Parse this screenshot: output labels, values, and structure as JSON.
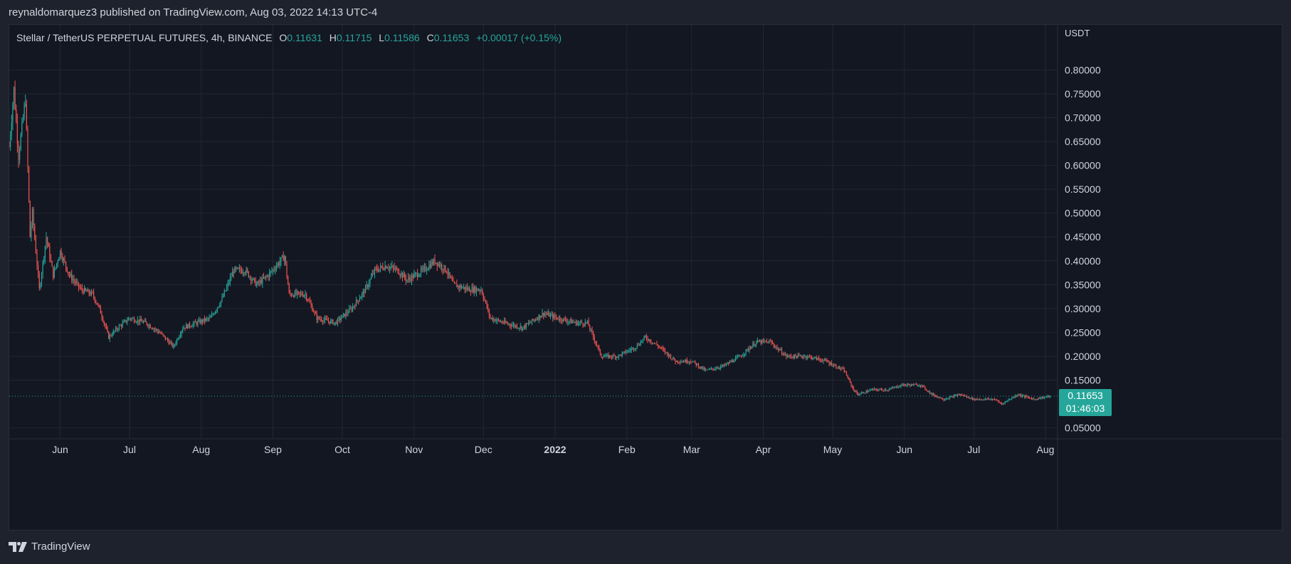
{
  "header": {
    "publisher_line": "reynaldomarquez3 published on TradingView.com, Aug 03, 2022 14:13 UTC-4"
  },
  "legend": {
    "symbol": "Stellar / TetherUS PERPETUAL FUTURES, 4h, BINANCE",
    "o_label": "O",
    "o_value": "0.11631",
    "h_label": "H",
    "h_value": "0.11715",
    "l_label": "L",
    "l_value": "0.11586",
    "c_label": "C",
    "c_value": "0.11653",
    "change": "+0.00017 (+0.15%)"
  },
  "price_scale": {
    "currency": "USDT",
    "last_price": "0.11653",
    "countdown": "01:46:03"
  },
  "footer": {
    "brand": "TradingView"
  },
  "colors": {
    "up": "#26a69a",
    "down": "#ef5350",
    "background": "#131722",
    "grid": "#232732"
  },
  "chart_data": {
    "type": "candlestick",
    "title": "Stellar / TetherUS PERPETUAL FUTURES, 4h, BINANCE",
    "ylabel": "USDT",
    "y_ticks": [
      "0.05000",
      "0.15000",
      "0.20000",
      "0.25000",
      "0.30000",
      "0.35000",
      "0.40000",
      "0.45000",
      "0.50000",
      "0.55000",
      "0.60000",
      "0.65000",
      "0.70000",
      "0.75000",
      "0.80000"
    ],
    "ylim": [
      0.03,
      0.82
    ],
    "x_ticks": [
      "Jun",
      "Jul",
      "Aug",
      "Sep",
      "Oct",
      "Nov",
      "Dec",
      "2022",
      "Feb",
      "Mar",
      "Apr",
      "May",
      "Jun",
      "Jul",
      "Aug"
    ],
    "x_tick_dates": [
      "2021-06-01",
      "2021-07-01",
      "2021-08-01",
      "2021-09-01",
      "2021-10-01",
      "2021-11-01",
      "2021-12-01",
      "2022-01-01",
      "2022-02-01",
      "2022-03-01",
      "2022-04-01",
      "2022-05-01",
      "2022-06-01",
      "2022-07-01",
      "2022-08-01"
    ],
    "x_range": [
      "2021-05-10",
      "2022-08-05"
    ],
    "last_close": 0.11653,
    "grid": true,
    "approx_path": [
      [
        "2021-05-10",
        0.64
      ],
      [
        "2021-05-12",
        0.76
      ],
      [
        "2021-05-14",
        0.62
      ],
      [
        "2021-05-17",
        0.74
      ],
      [
        "2021-05-19",
        0.45
      ],
      [
        "2021-05-20",
        0.5
      ],
      [
        "2021-05-23",
        0.34
      ],
      [
        "2021-05-26",
        0.45
      ],
      [
        "2021-05-29",
        0.37
      ],
      [
        "2021-06-01",
        0.42
      ],
      [
        "2021-06-05",
        0.37
      ],
      [
        "2021-06-10",
        0.34
      ],
      [
        "2021-06-15",
        0.33
      ],
      [
        "2021-06-18",
        0.3
      ],
      [
        "2021-06-22",
        0.24
      ],
      [
        "2021-06-26",
        0.26
      ],
      [
        "2021-07-01",
        0.28
      ],
      [
        "2021-07-08",
        0.27
      ],
      [
        "2021-07-14",
        0.25
      ],
      [
        "2021-07-20",
        0.22
      ],
      [
        "2021-07-24",
        0.26
      ],
      [
        "2021-07-30",
        0.27
      ],
      [
        "2021-08-05",
        0.28
      ],
      [
        "2021-08-10",
        0.32
      ],
      [
        "2021-08-15",
        0.38
      ],
      [
        "2021-08-20",
        0.38
      ],
      [
        "2021-08-25",
        0.35
      ],
      [
        "2021-08-30",
        0.37
      ],
      [
        "2021-09-06",
        0.41
      ],
      [
        "2021-09-08",
        0.33
      ],
      [
        "2021-09-15",
        0.33
      ],
      [
        "2021-09-20",
        0.28
      ],
      [
        "2021-09-28",
        0.27
      ],
      [
        "2021-10-05",
        0.3
      ],
      [
        "2021-10-11",
        0.34
      ],
      [
        "2021-10-15",
        0.38
      ],
      [
        "2021-10-20",
        0.39
      ],
      [
        "2021-10-25",
        0.38
      ],
      [
        "2021-10-29",
        0.36
      ],
      [
        "2021-11-05",
        0.38
      ],
      [
        "2021-11-10",
        0.4
      ],
      [
        "2021-11-15",
        0.38
      ],
      [
        "2021-11-18",
        0.35
      ],
      [
        "2021-11-25",
        0.34
      ],
      [
        "2021-11-30",
        0.34
      ],
      [
        "2021-12-04",
        0.28
      ],
      [
        "2021-12-10",
        0.27
      ],
      [
        "2021-12-18",
        0.26
      ],
      [
        "2021-12-27",
        0.29
      ],
      [
        "2022-01-02",
        0.28
      ],
      [
        "2022-01-10",
        0.27
      ],
      [
        "2022-01-15",
        0.27
      ],
      [
        "2022-01-21",
        0.2
      ],
      [
        "2022-01-28",
        0.2
      ],
      [
        "2022-02-05",
        0.22
      ],
      [
        "2022-02-09",
        0.24
      ],
      [
        "2022-02-15",
        0.22
      ],
      [
        "2022-02-22",
        0.19
      ],
      [
        "2022-03-01",
        0.19
      ],
      [
        "2022-03-07",
        0.17
      ],
      [
        "2022-03-15",
        0.18
      ],
      [
        "2022-03-22",
        0.2
      ],
      [
        "2022-03-29",
        0.23
      ],
      [
        "2022-04-04",
        0.23
      ],
      [
        "2022-04-11",
        0.2
      ],
      [
        "2022-04-20",
        0.2
      ],
      [
        "2022-04-28",
        0.19
      ],
      [
        "2022-05-06",
        0.17
      ],
      [
        "2022-05-10",
        0.13
      ],
      [
        "2022-05-12",
        0.12
      ],
      [
        "2022-05-18",
        0.13
      ],
      [
        "2022-05-25",
        0.13
      ],
      [
        "2022-05-31",
        0.14
      ],
      [
        "2022-06-08",
        0.14
      ],
      [
        "2022-06-13",
        0.12
      ],
      [
        "2022-06-18",
        0.11
      ],
      [
        "2022-06-25",
        0.12
      ],
      [
        "2022-07-01",
        0.11
      ],
      [
        "2022-07-10",
        0.11
      ],
      [
        "2022-07-13",
        0.1
      ],
      [
        "2022-07-20",
        0.12
      ],
      [
        "2022-07-27",
        0.11
      ],
      [
        "2022-08-03",
        0.1165
      ]
    ]
  }
}
